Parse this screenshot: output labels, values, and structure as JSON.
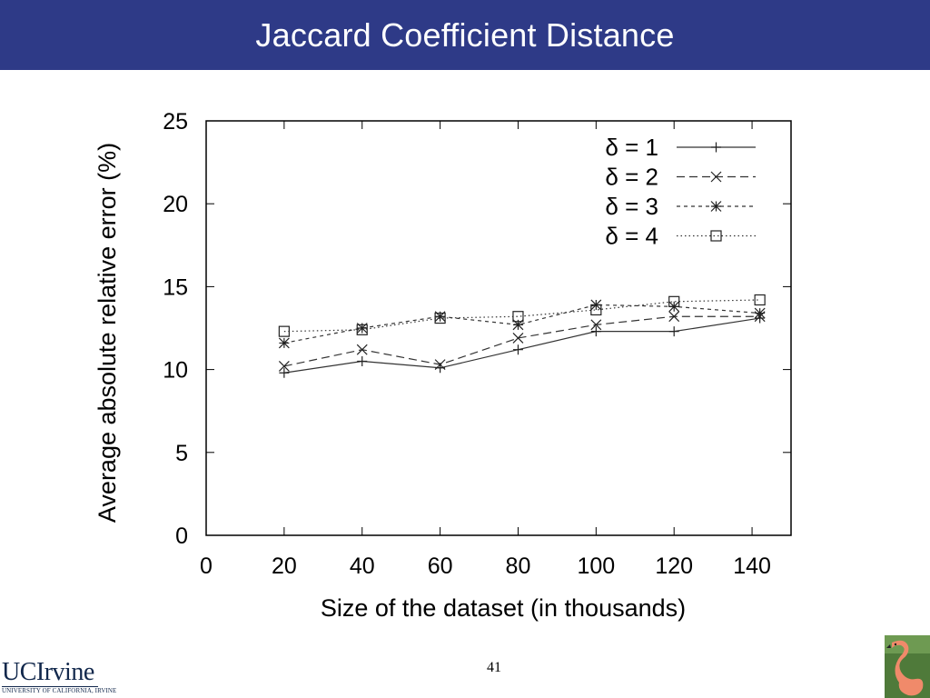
{
  "slide": {
    "title": "Jaccard Coefficient Distance",
    "page_number": "41",
    "logo_main": "UCIrvine",
    "logo_sub": "UNIVERSITY OF CALIFORNIA, IRVINE"
  },
  "colors": {
    "title_bar": "#2e3a87",
    "title_text": "#ffffff",
    "logo": "#12284c"
  },
  "chart_data": {
    "type": "line",
    "title": "",
    "xlabel": "Size of the dataset (in thousands)",
    "ylabel": "Average absolute relative error (%)",
    "xlim": [
      0,
      150
    ],
    "ylim": [
      0,
      25
    ],
    "xticks": [
      0,
      20,
      40,
      60,
      80,
      100,
      120,
      140
    ],
    "yticks": [
      0,
      5,
      10,
      15,
      20,
      25
    ],
    "grid": false,
    "legend_position": "top-right",
    "x": [
      20,
      40,
      60,
      80,
      100,
      120,
      142
    ],
    "series": [
      {
        "name": "δ = 1",
        "marker": "plus",
        "dash": "solid",
        "values": [
          9.8,
          10.5,
          10.1,
          11.2,
          12.3,
          12.3,
          13.1
        ]
      },
      {
        "name": "δ = 2",
        "marker": "cross",
        "dash": "dashed",
        "values": [
          10.2,
          11.2,
          10.3,
          11.9,
          12.7,
          13.2,
          13.2
        ]
      },
      {
        "name": "δ = 3",
        "marker": "star",
        "dash": "short-dashed",
        "values": [
          11.6,
          12.5,
          13.2,
          12.7,
          13.9,
          13.8,
          13.4
        ]
      },
      {
        "name": "δ = 4",
        "marker": "square",
        "dash": "dotted",
        "values": [
          12.3,
          12.4,
          13.1,
          13.2,
          13.6,
          14.1,
          14.2
        ]
      }
    ]
  }
}
